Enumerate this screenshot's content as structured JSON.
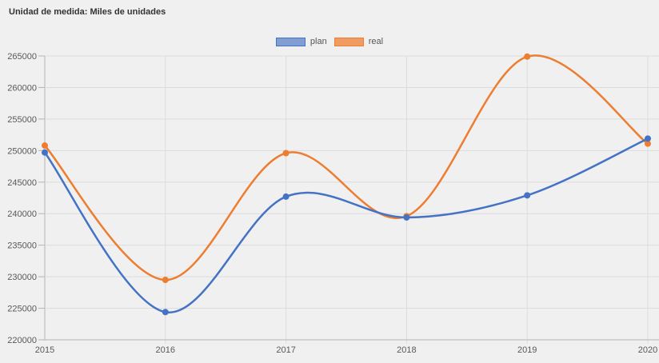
{
  "header": {
    "title": "Unidad de medida: Miles de unidades"
  },
  "chart_data": {
    "type": "line",
    "smooth": true,
    "title": "Unidad de medida: Miles de unidades",
    "xlabel": "",
    "ylabel": "",
    "x_labels": [
      "2015",
      "2016",
      "2017",
      "2018",
      "2019",
      "2020"
    ],
    "series": [
      {
        "name": "plan",
        "color": "#4472c4",
        "legend_fill": "#809ed3",
        "values": [
          249700,
          224400,
          242700,
          239400,
          242900,
          251900
        ]
      },
      {
        "name": "real",
        "color": "#ed7d31",
        "legend_fill": "#f09c60",
        "values": [
          250800,
          229500,
          249600,
          239600,
          264900,
          251100
        ]
      }
    ],
    "ylim": [
      220000,
      265000
    ],
    "ytick_step": 5000,
    "y_tick_labels": [
      "220000",
      "225000",
      "230000",
      "235000",
      "240000",
      "245000",
      "250000",
      "255000",
      "260000",
      "265000"
    ],
    "grid": true,
    "legend_position": "top-center"
  },
  "colors": {
    "background": "#f0f0f0",
    "gridline": "#dcdcdc",
    "axis": "#b3b3b3",
    "tick_label": "#595959",
    "title_text": "#333333",
    "legend_text": "#555555"
  }
}
